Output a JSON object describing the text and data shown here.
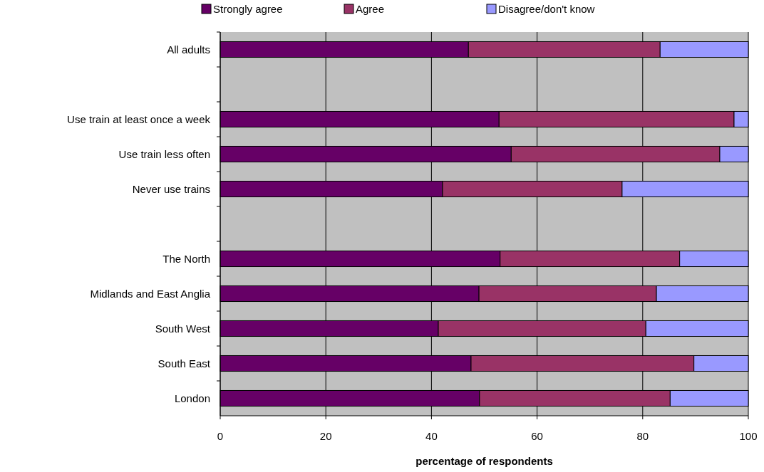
{
  "chart_data": {
    "type": "bar",
    "orientation": "horizontal",
    "stacked": true,
    "xlabel": "percentage of respondents",
    "categories": [
      "All adults",
      null,
      "Use train at least once a week",
      "Use train less often",
      "Never use trains",
      null,
      "The North",
      "Midlands and East Anglia",
      "South West",
      "South East",
      "London"
    ],
    "series": [
      {
        "name": "Strongly agree",
        "color": "#660066",
        "values": [
          47,
          null,
          52.8,
          55.1,
          42.1,
          null,
          53,
          49,
          41.3,
          47.5,
          49.1
        ]
      },
      {
        "name": "Agree",
        "color": "#993366",
        "values": [
          36.3,
          null,
          44.5,
          39.5,
          34,
          null,
          34,
          33.6,
          39.3,
          42.2,
          36.1
        ]
      },
      {
        "name": "Disagree/don't know",
        "color": "#9999ff",
        "values": [
          16.7,
          null,
          2.7,
          5.4,
          23.9,
          null,
          13,
          17.4,
          19.4,
          10.3,
          14.8
        ]
      }
    ],
    "xlim": [
      0,
      100
    ],
    "xticks": [
      0,
      20,
      40,
      60,
      80,
      100
    ],
    "grid": "x",
    "legend": "top"
  }
}
